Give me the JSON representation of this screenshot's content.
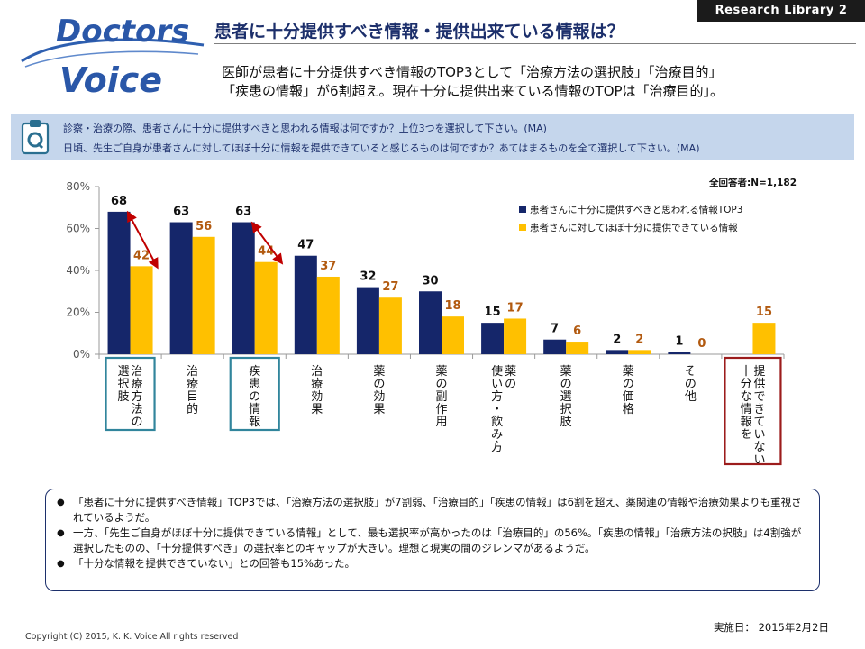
{
  "badge": "Research Library 2",
  "logo": {
    "line1": "Doctors",
    "line2": "Voice"
  },
  "title": "患者に十分提供すべき情報・提供出来ている情報は？",
  "lead": [
    "医師が患者に十分提供すべき情報のTOP3として「治療方法の選択肢」「治療目的」",
    "「疾患の情報」が6割超え。現在十分に提供出来ている情報のTOPは「治療目的」。"
  ],
  "questions": [
    "診察・治療の際、患者さんに十分に提供すべきと思われる情報は何ですか？上位3つを選択して下さい。(MA)",
    "日頃、先生ご自身が患者さんに対してほぼ十分に情報を提供できていると感じるものは何ですか？あてはまるものを全て選択して下さい。(MA)"
  ],
  "chart_data": {
    "type": "bar",
    "note": "全回答者:N=1,182",
    "categories": [
      "治療方法の選択肢",
      "治療目的",
      "疾患の情報",
      "治療効果",
      "薬の効果",
      "薬の副作用",
      "薬の使い方・飲み方",
      "薬の選択肢",
      "薬の価格",
      "その他",
      "提供できていない十分な情報を"
    ],
    "category_lines": [
      [
        "治療方法の",
        "選択肢"
      ],
      [
        "治療目的"
      ],
      [
        "疾患の情報"
      ],
      [
        "治療効果"
      ],
      [
        "薬の効果"
      ],
      [
        "薬の副作用"
      ],
      [
        "薬の",
        "使い方・飲み方"
      ],
      [
        "薬の選択肢"
      ],
      [
        "薬の価格"
      ],
      [
        "その他"
      ],
      [
        "提供できていない",
        "十分な情報を"
      ]
    ],
    "series": [
      {
        "name": "患者さんに十分に提供すべきと思われる情報TOP3",
        "color": "#15266a",
        "values": [
          68,
          63,
          63,
          47,
          32,
          30,
          15,
          7,
          2,
          1,
          null
        ]
      },
      {
        "name": "患者さんに対してほぼ十分に提供できている情報",
        "color": "#ffc000",
        "values": [
          42,
          56,
          44,
          37,
          27,
          18,
          17,
          6,
          2,
          0,
          15
        ]
      }
    ],
    "ylim": [
      0,
      80
    ],
    "yticks": [
      "0%",
      "20%",
      "40%",
      "60%",
      "80%"
    ],
    "highlight_categories": [
      0,
      2
    ],
    "highlight_color": "#31859c",
    "alert_category": 10,
    "alert_color": "#9c1c1c",
    "gap_arrow_categories": [
      0,
      2
    ],
    "arrow_color": "#c00000",
    "label_color_series2": "#b25a10",
    "grid": false
  },
  "notes": [
    "「患者に十分に提供すべき情報」TOP3では、「治療方法の選択肢」が7割弱、「治療目的」「疾患の情報」は6割を超え、薬関連の情報や治療効果よりも重視されているようだ。",
    "一方、「先生ご自身がほぼ十分に提供できている情報」として、最も選択率が高かったのは「治療目的」の56%。「疾患の情報」「治療方法の択肢」は4割強が選択したものの、「十分提供すべき」の選択率とのギャップが大きい。理想と現実の間のジレンマがあるようだ。",
    "「十分な情報を提供できていない」との回答も15%あった。"
  ],
  "copyright": "Copyright (C) 2015, K. K. Voice All rights reserved",
  "date": "実施日： 2015年2月2日"
}
